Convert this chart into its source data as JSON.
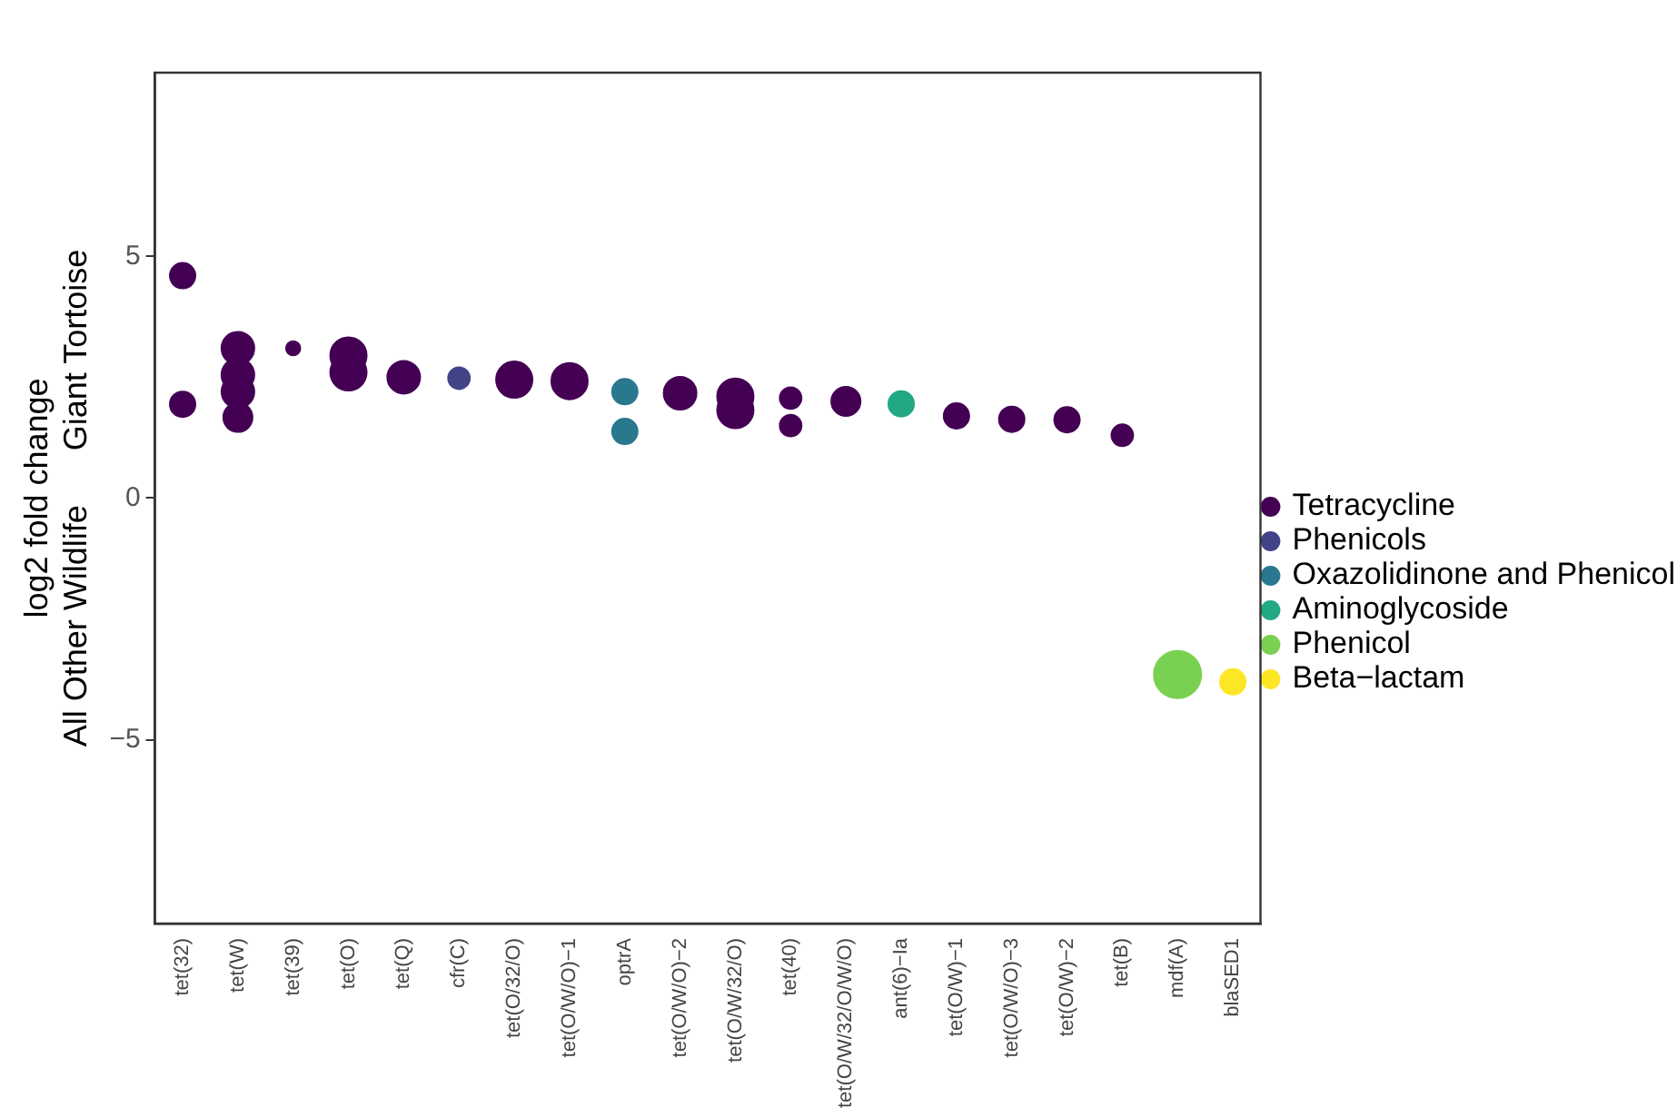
{
  "chart_data": {
    "type": "bubble",
    "ylabel": "log2 fold change\nAll Other Wildlife      Giant Tortoise",
    "categories": [
      "tet(32)",
      "tet(W)",
      "tet(39)",
      "tet(O)",
      "tet(Q)",
      "cfr(C)",
      "tet(O/32/O)",
      "tet(O/W/O)−1",
      "optrA",
      "tet(O/W/O)−2",
      "tet(O/W/32/O)",
      "tet(40)",
      "tet(O/W/32/O/W/O)",
      "ant(6)−Ia",
      "tet(O/W)−1",
      "tet(O/W/O)−3",
      "tet(O/W)−2",
      "tet(B)",
      "mdf(A)",
      "blaSED1"
    ],
    "ylim": [
      -8.8,
      8.8
    ],
    "yticks": [
      -5,
      0,
      5
    ],
    "grid": false,
    "legend": "right",
    "marker": "circle",
    "series": [
      {
        "name": "Tetracycline",
        "color": "#440154",
        "x": [
          "tet(32)",
          "tet(32)",
          "tet(W)",
          "tet(W)",
          "tet(W)",
          "tet(W)",
          "tet(39)",
          "tet(O)",
          "tet(O)",
          "tet(Q)",
          "tet(O/32/O)",
          "tet(O/W/O)−1",
          "tet(O/W/O)−2",
          "tet(O/W/32/O)",
          "tet(O/W/32/O)",
          "tet(40)",
          "tet(40)",
          "tet(O/W/32/O/W/O)",
          "tet(O/W)−1",
          "tet(O/W/O)−3",
          "tet(O/W)−2",
          "tet(B)"
        ],
        "values": [
          4.6,
          1.94,
          3.1,
          2.55,
          2.2,
          1.67,
          3.1,
          2.95,
          2.6,
          2.5,
          2.45,
          2.42,
          2.17,
          2.1,
          1.82,
          2.07,
          1.5,
          2.0,
          1.7,
          1.63,
          1.62,
          1.3
        ],
        "sizes": [
          0.29,
          0.29,
          0.48,
          0.48,
          0.48,
          0.38,
          0.09,
          0.59,
          0.59,
          0.48,
          0.59,
          0.59,
          0.48,
          0.59,
          0.59,
          0.21,
          0.21,
          0.38,
          0.29,
          0.29,
          0.29,
          0.21
        ]
      },
      {
        "name": "Phenicols",
        "color": "#414487",
        "x": [
          "cfr(C)"
        ],
        "values": [
          2.48
        ],
        "sizes": [
          0.21
        ]
      },
      {
        "name": "Oxazolidinone and Phenicol",
        "color": "#2a788e",
        "x": [
          "optrA",
          "optrA"
        ],
        "values": [
          2.2,
          1.38
        ],
        "sizes": [
          0.29,
          0.29
        ]
      },
      {
        "name": "Aminoglycoside",
        "color": "#22a884",
        "x": [
          "ant(6)−Ia"
        ],
        "values": [
          1.95
        ],
        "sizes": [
          0.29
        ]
      },
      {
        "name": "Phenicol",
        "color": "#7ad151",
        "x": [
          "mdf(A)"
        ],
        "values": [
          -3.65
        ],
        "sizes": [
          1
        ]
      },
      {
        "name": "Beta−lactam",
        "color": "#fde725",
        "x": [
          "blaSED1"
        ],
        "values": [
          -3.8
        ],
        "sizes": [
          0.29
        ]
      }
    ]
  }
}
